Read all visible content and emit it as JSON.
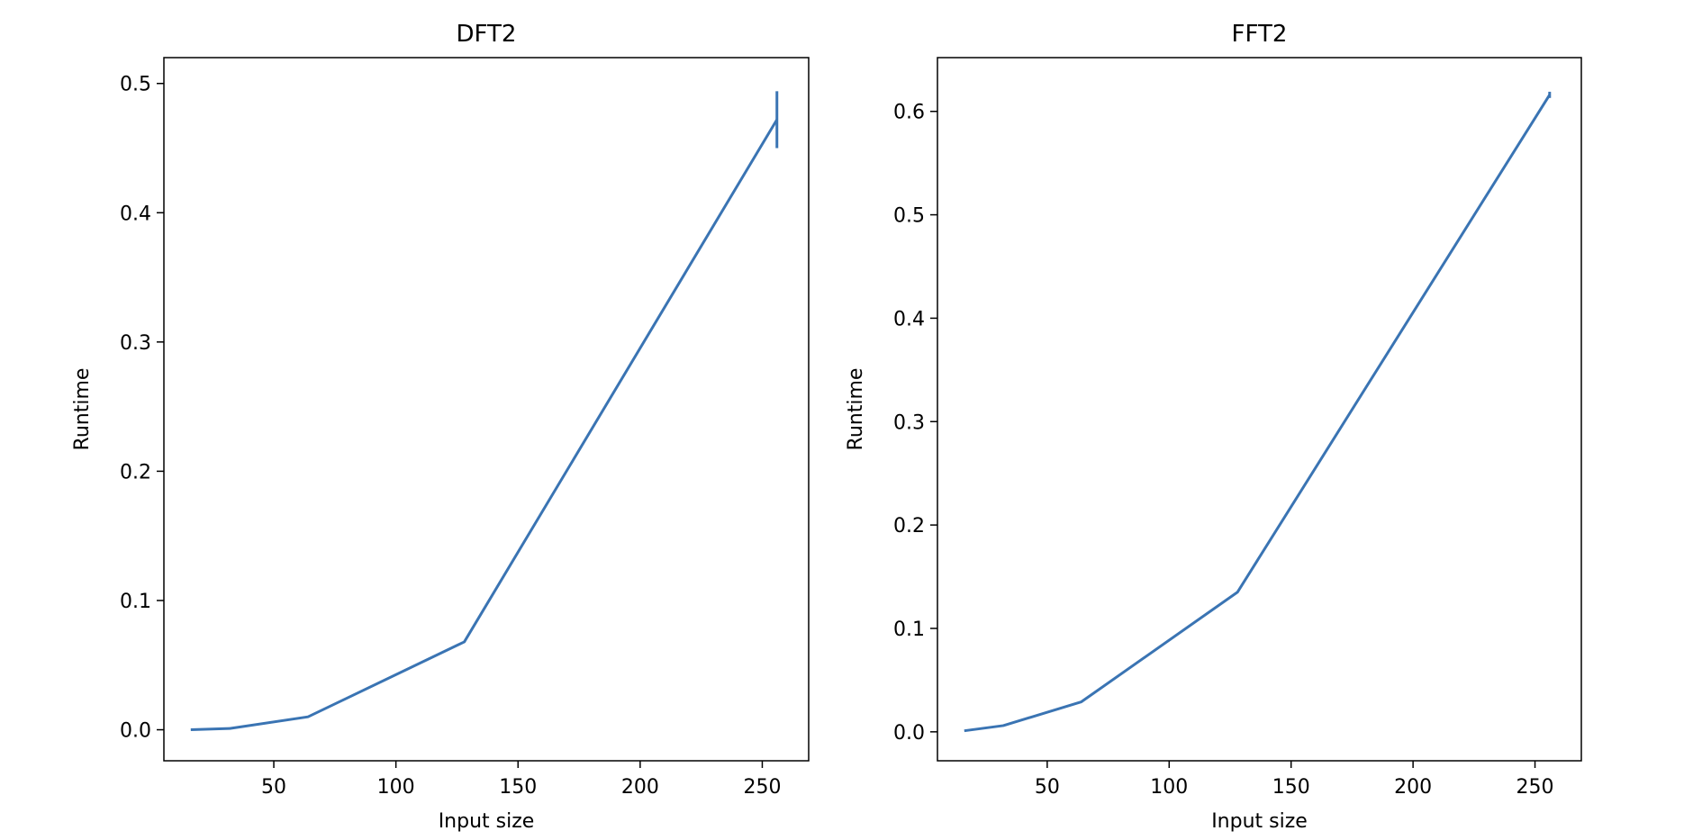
{
  "colors": {
    "series": "#3a74b3",
    "axes": "#000000",
    "background": "#ffffff"
  },
  "chart_data": [
    {
      "type": "line",
      "title": "DFT2",
      "xlabel": "Input size",
      "ylabel": "Runtime",
      "xlim": [
        5,
        269
      ],
      "ylim": [
        -0.024,
        0.52
      ],
      "x_ticks": [
        50,
        100,
        150,
        200,
        250
      ],
      "x_tick_labels": [
        "50",
        "100",
        "150",
        "200",
        "250"
      ],
      "y_ticks": [
        0.0,
        0.1,
        0.2,
        0.3,
        0.4,
        0.5
      ],
      "y_tick_labels": [
        "0.0",
        "0.1",
        "0.2",
        "0.3",
        "0.4",
        "0.5"
      ],
      "grid": false,
      "series": [
        {
          "x": [
            16,
            32,
            64,
            128,
            256
          ],
          "y": [
            0.0,
            0.001,
            0.01,
            0.068,
            0.472
          ],
          "yerr": [
            0.0,
            0.0,
            0.0,
            0.0,
            0.022
          ]
        }
      ]
    },
    {
      "type": "line",
      "title": "FFT2",
      "xlabel": "Input size",
      "ylabel": "Runtime",
      "xlim": [
        5,
        269
      ],
      "ylim": [
        -0.028,
        0.652
      ],
      "x_ticks": [
        50,
        100,
        150,
        200,
        250
      ],
      "x_tick_labels": [
        "50",
        "100",
        "150",
        "200",
        "250"
      ],
      "y_ticks": [
        0.0,
        0.1,
        0.2,
        0.3,
        0.4,
        0.5,
        0.6
      ],
      "y_tick_labels": [
        "0.0",
        "0.1",
        "0.2",
        "0.3",
        "0.4",
        "0.5",
        "0.6"
      ],
      "grid": false,
      "series": [
        {
          "x": [
            16,
            32,
            64,
            128,
            256
          ],
          "y": [
            0.001,
            0.006,
            0.029,
            0.135,
            0.616
          ],
          "yerr": [
            0.0,
            0.0,
            0.0,
            0.0,
            0.003
          ]
        }
      ]
    }
  ]
}
